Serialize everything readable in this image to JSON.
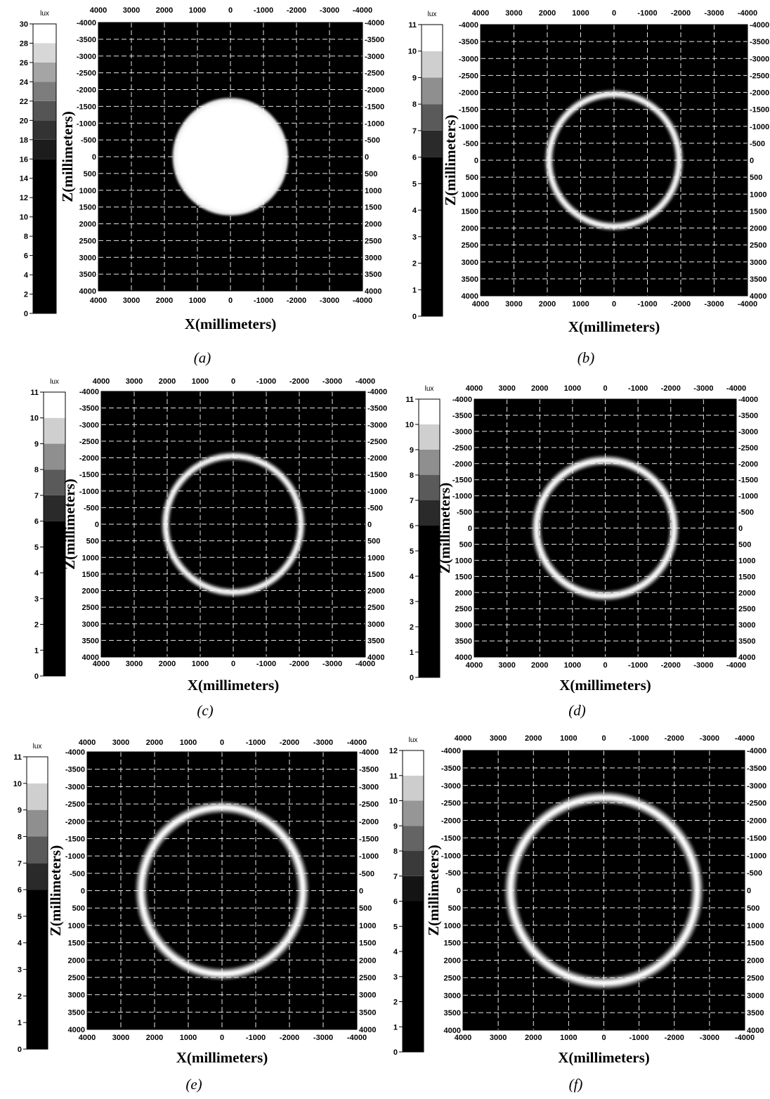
{
  "chart_data": [
    {
      "panel": "a",
      "type": "heatmap",
      "caption": "(a)",
      "xlabel": "X(millimeters)",
      "ylabel": "Z(millimeters)",
      "x_ticks": [
        "4000",
        "3000",
        "2000",
        "1000",
        "0",
        "-1000",
        "-2000",
        "-3000",
        "-4000"
      ],
      "y_ticks_left": [
        "-4000",
        "-3500",
        "-3000",
        "-2500",
        "-2000",
        "-1500",
        "-1000",
        "-500",
        "0",
        "500",
        "1000",
        "1500",
        "2000",
        "2500",
        "3000",
        "3500",
        "4000"
      ],
      "y_ticks_right": [
        "-4000",
        "-3500",
        "-3000",
        "-2500",
        "-2000",
        "-1500",
        "-1000",
        "-500",
        "0",
        "500",
        "1000",
        "1500",
        "2000",
        "2500",
        "3000",
        "3500",
        "4000"
      ],
      "xlim": [
        4000,
        -4000
      ],
      "ylim": [
        -4000,
        4000
      ],
      "grid": true,
      "pattern": "disk",
      "radius_mm": 1750,
      "colorbar": {
        "unit": "lux",
        "min": 0,
        "max": 30,
        "ticks": [
          "0",
          "2",
          "4",
          "6",
          "8",
          "10",
          "12",
          "14",
          "16",
          "18",
          "20",
          "22",
          "24",
          "26",
          "28",
          "30"
        ],
        "bands": [
          {
            "from": 0,
            "to": 16,
            "color": "#000000"
          },
          {
            "from": 16,
            "to": 18,
            "color": "#1c1c1c"
          },
          {
            "from": 18,
            "to": 20,
            "color": "#333333"
          },
          {
            "from": 20,
            "to": 22,
            "color": "#555555"
          },
          {
            "from": 22,
            "to": 24,
            "color": "#7d7d7d"
          },
          {
            "from": 24,
            "to": 26,
            "color": "#a5a5a5"
          },
          {
            "from": 26,
            "to": 28,
            "color": "#d7d7d7"
          },
          {
            "from": 28,
            "to": 30,
            "color": "#ffffff"
          }
        ]
      }
    },
    {
      "panel": "b",
      "type": "heatmap",
      "caption": "(b)",
      "xlabel": "X(millimeters)",
      "ylabel": "Z(millimeters)",
      "x_ticks": [
        "4000",
        "3000",
        "2000",
        "1000",
        "0",
        "-1000",
        "-2000",
        "-3000",
        "-4000"
      ],
      "y_ticks_left": [
        "-4000",
        "-3500",
        "-3000",
        "-2500",
        "-2000",
        "-1500",
        "-1000",
        "-500",
        "0",
        "500",
        "1000",
        "1500",
        "2000",
        "2500",
        "3000",
        "3500",
        "4000"
      ],
      "y_ticks_right": [
        "-4000",
        "-3500",
        "-3000",
        "-2500",
        "-2000",
        "-1500",
        "-1000",
        "-500",
        "0",
        "500",
        "1000",
        "1500",
        "2000",
        "2500",
        "3000",
        "3500",
        "4000"
      ],
      "xlim": [
        4000,
        -4000
      ],
      "ylim": [
        -4000,
        4000
      ],
      "grid": true,
      "pattern": "ring",
      "radius_mm": 1950,
      "ring_width_mm": 260,
      "colorbar": {
        "unit": "lux",
        "min": 0,
        "max": 11,
        "ticks": [
          "0",
          "1",
          "2",
          "3",
          "4",
          "5",
          "6",
          "7",
          "8",
          "9",
          "10",
          "11"
        ],
        "bands": [
          {
            "from": 0,
            "to": 6,
            "color": "#000000"
          },
          {
            "from": 6,
            "to": 7,
            "color": "#2a2a2a"
          },
          {
            "from": 7,
            "to": 8,
            "color": "#5a5a5a"
          },
          {
            "from": 8,
            "to": 9,
            "color": "#8f8f8f"
          },
          {
            "from": 9,
            "to": 10,
            "color": "#cfcfcf"
          },
          {
            "from": 10,
            "to": 11,
            "color": "#ffffff"
          }
        ]
      }
    },
    {
      "panel": "c",
      "type": "heatmap",
      "caption": "(c)",
      "xlabel": "X(millimeters)",
      "ylabel": "Z(millimeters)",
      "x_ticks": [
        "4000",
        "3000",
        "2000",
        "1000",
        "0",
        "-1000",
        "-2000",
        "-3000",
        "-4000"
      ],
      "y_ticks_left": [
        "-4000",
        "-3500",
        "-3000",
        "-2500",
        "-2000",
        "-1500",
        "-1000",
        "-500",
        "0",
        "500",
        "1000",
        "1500",
        "2000",
        "2500",
        "3000",
        "3500",
        "4000"
      ],
      "y_ticks_right": [
        "-4000",
        "-3500",
        "-3000",
        "-2500",
        "-2000",
        "-1500",
        "-1000",
        "-500",
        "0",
        "500",
        "1000",
        "1500",
        "2000",
        "2500",
        "3000",
        "3500",
        "4000"
      ],
      "xlim": [
        4000,
        -4000
      ],
      "ylim": [
        -4000,
        4000
      ],
      "grid": true,
      "pattern": "ring",
      "radius_mm": 2050,
      "ring_width_mm": 260,
      "colorbar": {
        "unit": "lux",
        "min": 0,
        "max": 11,
        "ticks": [
          "0",
          "1",
          "2",
          "3",
          "4",
          "5",
          "6",
          "7",
          "8",
          "9",
          "10",
          "11"
        ],
        "bands": [
          {
            "from": 0,
            "to": 6,
            "color": "#000000"
          },
          {
            "from": 6,
            "to": 7,
            "color": "#2a2a2a"
          },
          {
            "from": 7,
            "to": 8,
            "color": "#5a5a5a"
          },
          {
            "from": 8,
            "to": 9,
            "color": "#8f8f8f"
          },
          {
            "from": 9,
            "to": 10,
            "color": "#cfcfcf"
          },
          {
            "from": 10,
            "to": 11,
            "color": "#ffffff"
          }
        ]
      }
    },
    {
      "panel": "d",
      "type": "heatmap",
      "caption": "(d)",
      "xlabel": "X(millimeters)",
      "ylabel": "Z(millimeters)",
      "x_ticks": [
        "4000",
        "3000",
        "2000",
        "1000",
        "0",
        "-1000",
        "-2000",
        "-3000",
        "-4000"
      ],
      "y_ticks_left": [
        "-4000",
        "-3500",
        "-3000",
        "-2500",
        "-2000",
        "-1500",
        "-1000",
        "-500",
        "0",
        "500",
        "1000",
        "1500",
        "2000",
        "2500",
        "3000",
        "3500",
        "4000"
      ],
      "y_ticks_right": [
        "-4000",
        "-3500",
        "-3000",
        "-2500",
        "-2000",
        "-1500",
        "-1000",
        "-500",
        "0",
        "500",
        "1000",
        "1500",
        "2000",
        "2500",
        "3000",
        "3500",
        "4000"
      ],
      "xlim": [
        4000,
        -4000
      ],
      "ylim": [
        -4000,
        4000
      ],
      "grid": true,
      "pattern": "ring",
      "radius_mm": 2100,
      "ring_width_mm": 300,
      "colorbar": {
        "unit": "lux",
        "min": 0,
        "max": 11,
        "ticks": [
          "0",
          "1",
          "2",
          "3",
          "4",
          "5",
          "6",
          "7",
          "8",
          "9",
          "10",
          "11"
        ],
        "bands": [
          {
            "from": 0,
            "to": 6,
            "color": "#000000"
          },
          {
            "from": 6,
            "to": 7,
            "color": "#2a2a2a"
          },
          {
            "from": 7,
            "to": 8,
            "color": "#5a5a5a"
          },
          {
            "from": 8,
            "to": 9,
            "color": "#8f8f8f"
          },
          {
            "from": 9,
            "to": 10,
            "color": "#cfcfcf"
          },
          {
            "from": 10,
            "to": 11,
            "color": "#ffffff"
          }
        ]
      }
    },
    {
      "panel": "e",
      "type": "heatmap",
      "caption": "(e)",
      "xlabel": "X(millimeters)",
      "ylabel": "Z(millimeters)",
      "x_ticks": [
        "4000",
        "3000",
        "2000",
        "1000",
        "0",
        "-1000",
        "-2000",
        "-3000",
        "-4000"
      ],
      "y_ticks_left": [
        "-4000",
        "-3500",
        "-3000",
        "-2500",
        "-2000",
        "-1500",
        "-1000",
        "-500",
        "0",
        "500",
        "1000",
        "1500",
        "2000",
        "2500",
        "3000",
        "3500",
        "4000"
      ],
      "y_ticks_right": [
        "-4000",
        "-3500",
        "-3000",
        "-2500",
        "-2000",
        "-1500",
        "-1000",
        "-500",
        "0",
        "500",
        "1000",
        "1500",
        "2000",
        "2500",
        "3000",
        "3500",
        "4000"
      ],
      "xlim": [
        4000,
        -4000
      ],
      "ylim": [
        -4000,
        4000
      ],
      "grid": true,
      "pattern": "ring",
      "radius_mm": 2400,
      "ring_width_mm": 340,
      "colorbar": {
        "unit": "lux",
        "min": 0,
        "max": 11,
        "ticks": [
          "0",
          "1",
          "2",
          "3",
          "4",
          "5",
          "6",
          "7",
          "8",
          "9",
          "10",
          "11"
        ],
        "bands": [
          {
            "from": 0,
            "to": 6,
            "color": "#000000"
          },
          {
            "from": 6,
            "to": 7,
            "color": "#2a2a2a"
          },
          {
            "from": 7,
            "to": 8,
            "color": "#5a5a5a"
          },
          {
            "from": 8,
            "to": 9,
            "color": "#8f8f8f"
          },
          {
            "from": 9,
            "to": 10,
            "color": "#cfcfcf"
          },
          {
            "from": 10,
            "to": 11,
            "color": "#ffffff"
          }
        ]
      }
    },
    {
      "panel": "f",
      "type": "heatmap",
      "caption": "(f)",
      "xlabel": "X(millimeters)",
      "ylabel": "Z(millimeters)",
      "x_ticks": [
        "4000",
        "3000",
        "2000",
        "1000",
        "0",
        "-1000",
        "-2000",
        "-3000",
        "-4000"
      ],
      "y_ticks_left": [
        "-4000",
        "-3500",
        "-3000",
        "-2500",
        "-2000",
        "-1500",
        "-1000",
        "-500",
        "0",
        "500",
        "1000",
        "1500",
        "2000",
        "2500",
        "3000",
        "3500",
        "4000"
      ],
      "y_ticks_right": [
        "-4000",
        "-3500",
        "-3000",
        "-2500",
        "-2000",
        "-1500",
        "-1000",
        "-500",
        "0",
        "500",
        "1000",
        "1500",
        "2000",
        "2500",
        "3000",
        "3500",
        "4000"
      ],
      "xlim": [
        4000,
        -4000
      ],
      "ylim": [
        -4000,
        4000
      ],
      "grid": true,
      "pattern": "ring",
      "radius_mm": 2650,
      "ring_width_mm": 340,
      "colorbar": {
        "unit": "lux",
        "min": 0,
        "max": 12,
        "ticks": [
          "0",
          "1",
          "2",
          "3",
          "4",
          "5",
          "6",
          "7",
          "8",
          "9",
          "10",
          "11",
          "12"
        ],
        "bands": [
          {
            "from": 0,
            "to": 6,
            "color": "#000000"
          },
          {
            "from": 6,
            "to": 7,
            "color": "#141414"
          },
          {
            "from": 7,
            "to": 8,
            "color": "#3a3a3a"
          },
          {
            "from": 8,
            "to": 9,
            "color": "#646464"
          },
          {
            "from": 9,
            "to": 10,
            "color": "#969696"
          },
          {
            "from": 10,
            "to": 11,
            "color": "#cdcdcd"
          },
          {
            "from": 11,
            "to": 12,
            "color": "#ffffff"
          }
        ]
      }
    }
  ]
}
